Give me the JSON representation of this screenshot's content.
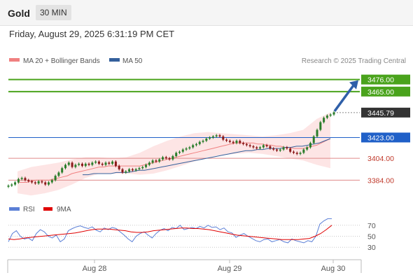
{
  "header": {
    "symbol": "Gold",
    "interval": "30 MIN"
  },
  "timestamp": "Friday, August 29, 2025 6:31:19 PM CET",
  "legend": {
    "ma20_label": "MA 20 + Bollinger Bands",
    "ma50_label": "MA 50",
    "ma20_color": "#f08080",
    "ma50_color": "#34609c",
    "copyright": "Research © 2025 Trading Central"
  },
  "rsi_legend": {
    "rsi_label": "RSI",
    "ma_label": "9MA",
    "rsi_color": "#5b7fd6",
    "ma_color": "#e00000"
  },
  "colors": {
    "resistance": "#4aa31c",
    "pivot": "#2060c8",
    "support": "#e08a8a",
    "current": "#333333",
    "arrow": "#2f5fa8",
    "candle_up": "#2a7d2a",
    "candle_down": "#8b1a1a",
    "band_fill": "#fbd3d3"
  },
  "chart_data": {
    "type": "candlestick",
    "x_labels": [
      "Aug 28",
      "Aug 29",
      "Aug 30"
    ],
    "price_levels": [
      {
        "label": "3476.00",
        "value": 3476.0,
        "kind": "resistance"
      },
      {
        "label": "3465.00",
        "value": 3465.0,
        "kind": "resistance"
      },
      {
        "label": "3445.79",
        "value": 3445.79,
        "kind": "current"
      },
      {
        "label": "3423.00",
        "value": 3423.0,
        "kind": "pivot"
      },
      {
        "label": "3404.00",
        "value": 3404.0,
        "kind": "support"
      },
      {
        "label": "3384.00",
        "value": 3384.0,
        "kind": "support"
      }
    ],
    "y_range": [
      3374,
      3486
    ],
    "candle_closes": [
      3379,
      3380,
      3382,
      3385,
      3386,
      3384,
      3383,
      3382,
      3381,
      3383,
      3382,
      3380,
      3382,
      3384,
      3388,
      3391,
      3395,
      3398,
      3400,
      3396,
      3398,
      3399,
      3397,
      3399,
      3398,
      3400,
      3401,
      3399,
      3398,
      3400,
      3399,
      3401,
      3397,
      3394,
      3391,
      3392,
      3394,
      3393,
      3394,
      3395,
      3396,
      3398,
      3400,
      3402,
      3401,
      3403,
      3405,
      3404,
      3403,
      3406,
      3409,
      3410,
      3412,
      3413,
      3414,
      3416,
      3417,
      3419,
      3420,
      3422,
      3423,
      3424,
      3425,
      3424,
      3421,
      3420,
      3419,
      3418,
      3420,
      3418,
      3417,
      3416,
      3415,
      3414,
      3413,
      3414,
      3416,
      3415,
      3413,
      3412,
      3411,
      3412,
      3414,
      3413,
      3410,
      3409,
      3408,
      3409,
      3412,
      3414,
      3418,
      3424,
      3430,
      3437,
      3441,
      3443,
      3444,
      3446
    ],
    "ma20_values": [
      3382,
      3382,
      3382,
      3383,
      3384,
      3384,
      3384,
      3384,
      3385,
      3386,
      3387,
      3388,
      3390,
      3391,
      3392,
      3393,
      3394,
      3395,
      3396,
      3396,
      3397,
      3397,
      3397,
      3397,
      3397,
      3397,
      3397,
      3397,
      3398,
      3399,
      3400,
      3401,
      3402,
      3403,
      3404,
      3405,
      3406,
      3407,
      3408,
      3409,
      3410,
      3411,
      3412,
      3413,
      3414,
      3415,
      3416,
      3417,
      3418,
      3418,
      3418,
      3418,
      3418,
      3417,
      3417,
      3416,
      3416,
      3415,
      3415,
      3414,
      3414,
      3413,
      3413,
      3413,
      3414,
      3415,
      3416,
      3418,
      3420,
      3422
    ],
    "ma50_values": [
      3389,
      3389,
      3390,
      3390,
      3390,
      3390,
      3391,
      3391,
      3391,
      3392,
      3393,
      3393,
      3394,
      3395,
      3396,
      3397,
      3398,
      3399,
      3400,
      3401,
      3402,
      3403,
      3404,
      3405,
      3406,
      3407,
      3408,
      3409,
      3410,
      3411,
      3411,
      3412,
      3412,
      3413,
      3413,
      3413,
      3414,
      3414,
      3415,
      3415,
      3416,
      3417,
      3418,
      3420,
      3422
    ],
    "band_upper": [
      3392,
      3396,
      3398,
      3400,
      3403,
      3405,
      3405,
      3404,
      3405,
      3409,
      3415,
      3420,
      3424,
      3427,
      3428,
      3427,
      3426,
      3425,
      3424,
      3425,
      3427,
      3430,
      3440,
      3446
    ],
    "band_lower": [
      3372,
      3370,
      3372,
      3375,
      3380,
      3386,
      3390,
      3390,
      3390,
      3389,
      3390,
      3393,
      3397,
      3401,
      3405,
      3407,
      3408,
      3409,
      3408,
      3406,
      3404,
      3402,
      3398,
      3395
    ],
    "rsi": {
      "levels": [
        70,
        50,
        30
      ],
      "y_range": [
        15,
        85
      ],
      "rsi_values": [
        40,
        55,
        60,
        50,
        45,
        47,
        42,
        55,
        62,
        58,
        50,
        47,
        52,
        40,
        45,
        60,
        64,
        67,
        69,
        66,
        64,
        67,
        61,
        58,
        65,
        62,
        66,
        64,
        58,
        52,
        45,
        40,
        50,
        55,
        58,
        52,
        47,
        55,
        61,
        64,
        60,
        66,
        64,
        70,
        62,
        64,
        66,
        64,
        68,
        65,
        70,
        66,
        67,
        62,
        65,
        58,
        56,
        48,
        52,
        55,
        50,
        46,
        42,
        40,
        44,
        45,
        40,
        42,
        44,
        40,
        38,
        45,
        42,
        40,
        38,
        42,
        40,
        50,
        72,
        78,
        82,
        82
      ],
      "ma_values": [
        45,
        44,
        45,
        47,
        48,
        49,
        50,
        51,
        52,
        53,
        54,
        55,
        56,
        58,
        60,
        62,
        63,
        63,
        63,
        62,
        61,
        60,
        58,
        57,
        57,
        58,
        60,
        61,
        62,
        63,
        64,
        65,
        65,
        64,
        64,
        63,
        62,
        60,
        58,
        56,
        54,
        52,
        51,
        50,
        49,
        48,
        47,
        46,
        45,
        44,
        44,
        44,
        44,
        45,
        46,
        50,
        55,
        62,
        70
      ]
    }
  }
}
